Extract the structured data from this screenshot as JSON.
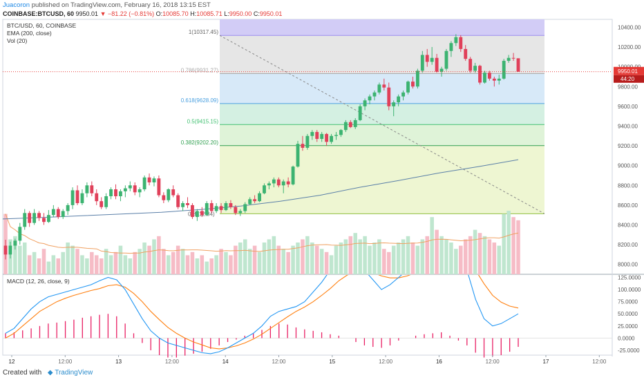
{
  "header": {
    "author": "Juacoron",
    "published_text": "published on TradingView.com, February 16, 2018 13:15 EST",
    "symbol": "COINBASE:BTCUSD, 60",
    "last": "9950.01",
    "change": "−81.22 (−0.81%)",
    "o_label": "O:",
    "o": "10085.70",
    "h_label": "H:",
    "h": "10085.71",
    "l_label": "L:",
    "l": "9950.00",
    "c_label": "C:",
    "c": "9950.01"
  },
  "legend": {
    "symbol_line": "BTC/USD, 60, COINBASE",
    "ema_line": "EMA (200, close)",
    "vol_line": "Vol (20)"
  },
  "fib": {
    "labels": [
      "1(10317.45)",
      "0.786(9931.27)",
      "0.618(9628.09)",
      "0.5(9415.15)",
      "0.382(9202.20)",
      "0(8512.84)"
    ],
    "levels": [
      10317.45,
      9931.27,
      9628.09,
      9415.15,
      9202.2,
      8512.84
    ],
    "colors": [
      "#9c8cf0",
      "#aaaaaa",
      "#4aa0e0",
      "#40c070",
      "#30a050",
      "#90c040"
    ],
    "fill_colors": [
      "#e6e6e6",
      "#d7e9f8",
      "#d4f0e2",
      "#dff3d8",
      "#eef6d2"
    ],
    "top_fill": "#d2ccf6"
  },
  "price_axis": {
    "ticks": [
      "10400.00",
      "10200.00",
      "10000.00",
      "9800.00",
      "9600.00",
      "9400.00",
      "9200.00",
      "9000.00",
      "8800.00",
      "8600.00",
      "8400.00",
      "8200.00",
      "8000.00"
    ],
    "tick_values": [
      10400,
      10200,
      10000,
      9800,
      9600,
      9400,
      9200,
      9000,
      8800,
      8600,
      8400,
      8200,
      8000
    ],
    "last_label": "9950.01",
    "countdown_label": "44:20",
    "last_color": "#e53935"
  },
  "time_axis": {
    "labels": [
      "12",
      "12:00",
      "13",
      "12:00",
      "14",
      "12:00",
      "15",
      "12:00",
      "16",
      "12:00",
      "17",
      "12:00"
    ]
  },
  "macd_panel": {
    "title": "MACD (12, 26, close, 9)",
    "ticks": [
      "125.0000",
      "100.0000",
      "75.0000",
      "50.0000",
      "25.0000",
      "0.0000",
      "-25.0000"
    ],
    "tick_values": [
      125,
      100,
      75,
      50,
      25,
      0,
      -25
    ],
    "macd_color": "#2196f3",
    "signal_color": "#ff7f0e",
    "hist_color": "#e91e63"
  },
  "chart_data": {
    "type": "candlestick",
    "symbol": "BTC/USD",
    "interval": "60",
    "ylim": [
      7900,
      10480
    ],
    "up_color": "#3cb371",
    "down_color": "#e0405a",
    "ema_color": "#5a7fa8",
    "candles": [
      [
        8190,
        8250,
        8050,
        8100
      ],
      [
        8100,
        8230,
        8060,
        8190
      ],
      [
        8190,
        8260,
        8150,
        8240
      ],
      [
        8240,
        8420,
        8200,
        8380
      ],
      [
        8380,
        8560,
        8350,
        8520
      ],
      [
        8520,
        8540,
        8380,
        8420
      ],
      [
        8420,
        8560,
        8400,
        8520
      ],
      [
        8520,
        8540,
        8440,
        8470
      ],
      [
        8470,
        8520,
        8400,
        8430
      ],
      [
        8430,
        8550,
        8420,
        8500
      ],
      [
        8500,
        8600,
        8480,
        8560
      ],
      [
        8560,
        8580,
        8460,
        8480
      ],
      [
        8480,
        8560,
        8460,
        8540
      ],
      [
        8540,
        8620,
        8500,
        8600
      ],
      [
        8600,
        8780,
        8560,
        8750
      ],
      [
        8750,
        8800,
        8600,
        8620
      ],
      [
        8620,
        8760,
        8600,
        8720
      ],
      [
        8720,
        8830,
        8680,
        8800
      ],
      [
        8800,
        8840,
        8690,
        8720
      ],
      [
        8720,
        8760,
        8600,
        8640
      ],
      [
        8640,
        8680,
        8560,
        8580
      ],
      [
        8580,
        8720,
        8560,
        8690
      ],
      [
        8690,
        8780,
        8660,
        8760
      ],
      [
        8760,
        8810,
        8660,
        8690
      ],
      [
        8690,
        8760,
        8640,
        8740
      ],
      [
        8740,
        8800,
        8680,
        8770
      ],
      [
        8770,
        8840,
        8740,
        8800
      ],
      [
        8800,
        8830,
        8700,
        8730
      ],
      [
        8730,
        8780,
        8680,
        8760
      ],
      [
        8760,
        8900,
        8740,
        8880
      ],
      [
        8880,
        8920,
        8800,
        8830
      ],
      [
        8830,
        8890,
        8790,
        8870
      ],
      [
        8870,
        8900,
        8680,
        8700
      ],
      [
        8700,
        8730,
        8620,
        8650
      ],
      [
        8650,
        8770,
        8630,
        8760
      ],
      [
        8760,
        8800,
        8680,
        8700
      ],
      [
        8700,
        8720,
        8560,
        8580
      ],
      [
        8580,
        8640,
        8540,
        8620
      ],
      [
        8620,
        8680,
        8570,
        8600
      ],
      [
        8600,
        8620,
        8460,
        8480
      ],
      [
        8480,
        8560,
        8440,
        8540
      ],
      [
        8540,
        8580,
        8480,
        8500
      ],
      [
        8500,
        8640,
        8490,
        8620
      ],
      [
        8620,
        8650,
        8520,
        8540
      ],
      [
        8540,
        8620,
        8520,
        8590
      ],
      [
        8590,
        8620,
        8520,
        8550
      ],
      [
        8550,
        8640,
        8540,
        8620
      ],
      [
        8620,
        8650,
        8560,
        8580
      ],
      [
        8580,
        8600,
        8500,
        8520
      ],
      [
        8520,
        8560,
        8490,
        8540
      ],
      [
        8540,
        8630,
        8520,
        8610
      ],
      [
        8610,
        8680,
        8600,
        8660
      ],
      [
        8660,
        8700,
        8620,
        8640
      ],
      [
        8640,
        8740,
        8630,
        8720
      ],
      [
        8720,
        8820,
        8710,
        8800
      ],
      [
        8800,
        8840,
        8760,
        8820
      ],
      [
        8820,
        8880,
        8780,
        8860
      ],
      [
        8860,
        8880,
        8780,
        8800
      ],
      [
        8800,
        8860,
        8720,
        8840
      ],
      [
        8840,
        8880,
        8780,
        8810
      ],
      [
        8810,
        9000,
        8800,
        8990
      ],
      [
        8990,
        9250,
        8980,
        9220
      ],
      [
        9220,
        9300,
        9150,
        9180
      ],
      [
        9180,
        9320,
        9160,
        9300
      ],
      [
        9300,
        9360,
        9260,
        9340
      ],
      [
        9340,
        9360,
        9240,
        9270
      ],
      [
        9270,
        9340,
        9240,
        9320
      ],
      [
        9320,
        9330,
        9200,
        9240
      ],
      [
        9240,
        9320,
        9220,
        9300
      ],
      [
        9300,
        9340,
        9260,
        9310
      ],
      [
        9310,
        9370,
        9290,
        9360
      ],
      [
        9360,
        9460,
        9340,
        9440
      ],
      [
        9440,
        9460,
        9380,
        9390
      ],
      [
        9390,
        9480,
        9370,
        9460
      ],
      [
        9460,
        9620,
        9450,
        9600
      ],
      [
        9600,
        9680,
        9560,
        9660
      ],
      [
        9660,
        9720,
        9620,
        9700
      ],
      [
        9700,
        9760,
        9660,
        9740
      ],
      [
        9740,
        9840,
        9720,
        9820
      ],
      [
        9820,
        9880,
        9760,
        9790
      ],
      [
        9790,
        9840,
        9560,
        9600
      ],
      [
        9600,
        9660,
        9500,
        9640
      ],
      [
        9640,
        9720,
        9600,
        9700
      ],
      [
        9700,
        9760,
        9660,
        9740
      ],
      [
        9740,
        9860,
        9720,
        9850
      ],
      [
        9850,
        9900,
        9780,
        9800
      ],
      [
        9800,
        9980,
        9780,
        9960
      ],
      [
        9960,
        10160,
        9940,
        10120
      ],
      [
        10120,
        10180,
        10000,
        10050
      ],
      [
        10050,
        10200,
        10020,
        10090
      ],
      [
        10090,
        10130,
        9940,
        9950
      ],
      [
        9950,
        10000,
        9900,
        9980
      ],
      [
        9980,
        10180,
        9960,
        10160
      ],
      [
        10160,
        10260,
        10100,
        10240
      ],
      [
        10240,
        10330,
        10210,
        10300
      ],
      [
        10300,
        10320,
        10150,
        10180
      ],
      [
        10180,
        10220,
        10060,
        10080
      ],
      [
        10080,
        10100,
        9940,
        9960
      ],
      [
        9960,
        10040,
        9940,
        10010
      ],
      [
        10010,
        10020,
        9820,
        9840
      ],
      [
        9840,
        9960,
        9830,
        9940
      ],
      [
        9940,
        9960,
        9860,
        9880
      ],
      [
        9880,
        9900,
        9800,
        9860
      ],
      [
        9860,
        9920,
        9820,
        9880
      ],
      [
        9880,
        10080,
        9870,
        10060
      ],
      [
        10060,
        10120,
        10040,
        10090
      ],
      [
        10090,
        10140,
        10060,
        10086
      ],
      [
        10086,
        10086,
        9950,
        9950
      ]
    ],
    "ema200": [
      8460,
      8475,
      8493,
      8510,
      8528,
      8555,
      8590,
      8640,
      8700,
      8780,
      8850,
      8925,
      8990,
      9060
    ],
    "volume": [
      95,
      55,
      60,
      45,
      50,
      30,
      35,
      25,
      40,
      20,
      30,
      25,
      35,
      50,
      45,
      40,
      30,
      25,
      35,
      30,
      25,
      40,
      30,
      35,
      45,
      30,
      25,
      35,
      40,
      50,
      45,
      55,
      60,
      40,
      30,
      35,
      45,
      40,
      30,
      35,
      25,
      30,
      20,
      25,
      30,
      40,
      35,
      30,
      45,
      50,
      55,
      40,
      45,
      35,
      50,
      55,
      60,
      45,
      40,
      35,
      45,
      50,
      55,
      60,
      50,
      45,
      40,
      35,
      30,
      45,
      50,
      55,
      60,
      65,
      55,
      60,
      45,
      50,
      55,
      40,
      35,
      45,
      50,
      55,
      60,
      50,
      45,
      55,
      60,
      90,
      70,
      60,
      55,
      50,
      40,
      45,
      55,
      60,
      70,
      65,
      60,
      55,
      50,
      45,
      95,
      100,
      90,
      85,
      70
    ],
    "macd": [
      10,
      20,
      40,
      60,
      75,
      85,
      90,
      95,
      100,
      105,
      110,
      118,
      125,
      120,
      100,
      70,
      40,
      15,
      0,
      -10,
      -15,
      -20,
      -25,
      -30,
      -32,
      -28,
      -20,
      -10,
      0,
      10,
      25,
      45,
      55,
      60,
      65,
      75,
      95,
      115,
      140,
      160,
      160,
      150,
      140,
      120,
      100,
      110,
      125,
      140,
      160,
      175,
      190,
      200,
      190,
      170,
      140,
      80,
      40,
      25,
      30,
      40,
      50
    ],
    "signal": [
      0,
      10,
      25,
      40,
      55,
      65,
      75,
      82,
      88,
      93,
      98,
      102,
      108,
      110,
      105,
      92,
      75,
      55,
      38,
      22,
      10,
      0,
      -8,
      -14,
      -20,
      -22,
      -20,
      -16,
      -10,
      -2,
      8,
      20,
      32,
      44,
      55,
      64,
      75,
      88,
      102,
      118,
      130,
      136,
      138,
      135,
      128,
      124,
      124,
      128,
      135,
      145,
      156,
      166,
      172,
      170,
      162,
      140,
      112,
      88,
      74,
      66,
      62
    ],
    "histogram": [
      10,
      12,
      16,
      20,
      25,
      30,
      32,
      35,
      38,
      42,
      45,
      48,
      50,
      45,
      30,
      10,
      -10,
      -25,
      -35,
      -40,
      -40,
      -36,
      -32,
      -28,
      -22,
      -15,
      -8,
      -3,
      5,
      10,
      17,
      25,
      30,
      28,
      22,
      18,
      15,
      12,
      8,
      5,
      0,
      -8,
      -15,
      -18,
      -20,
      -15,
      -5,
      0,
      5,
      8,
      10,
      12,
      5,
      -5,
      -15,
      -30,
      -40,
      -38,
      -35,
      -28,
      -18
    ]
  }
}
